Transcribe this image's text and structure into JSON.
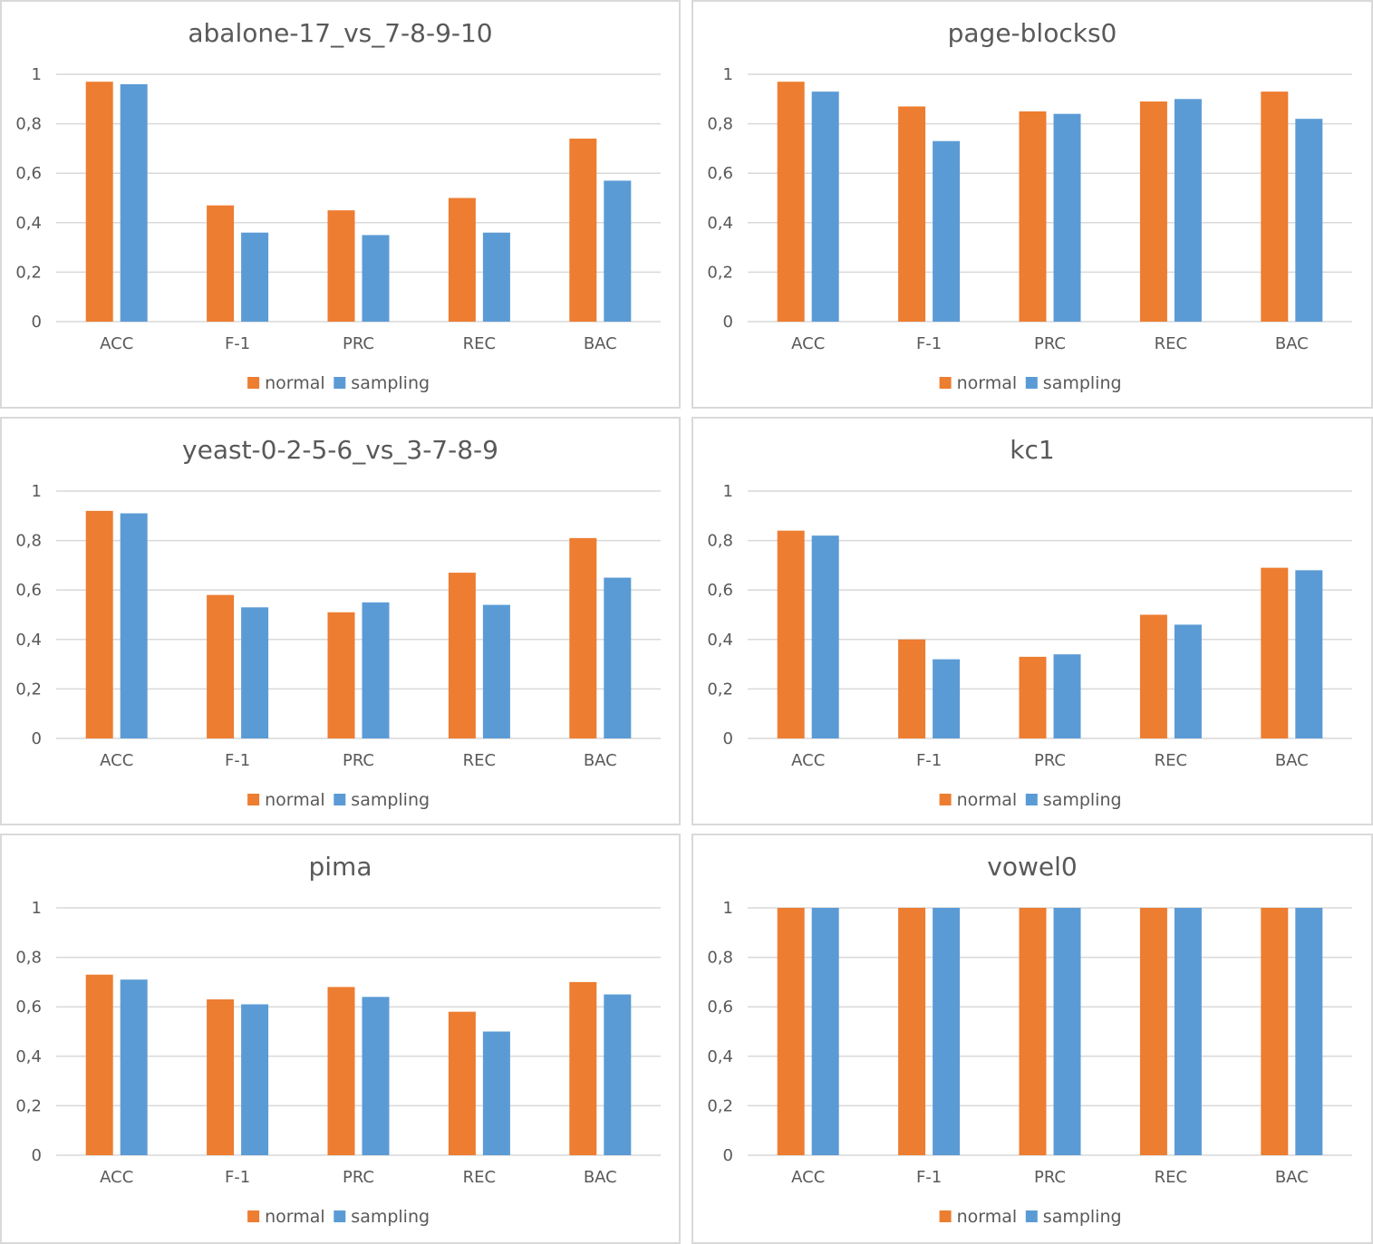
{
  "colors": {
    "normal": "#ed7d31",
    "sampling": "#5b9bd5",
    "grid": "#d9d9d9",
    "text": "#595959"
  },
  "chart_data": [
    {
      "type": "bar",
      "title": "abalone-17_vs_7-8-9-10",
      "categories": [
        "ACC",
        "F-1",
        "PRC",
        "REC",
        "BAC"
      ],
      "series": [
        {
          "name": "normal",
          "values": [
            0.97,
            0.47,
            0.45,
            0.5,
            0.74
          ]
        },
        {
          "name": "sampling",
          "values": [
            0.96,
            0.36,
            0.35,
            0.36,
            0.57
          ]
        }
      ],
      "ylim": [
        0,
        1
      ],
      "yticks": [
        "0",
        "0,2",
        "0,4",
        "0,6",
        "0,8",
        "1"
      ],
      "legend": "bottom"
    },
    {
      "type": "bar",
      "title": "page-blocks0",
      "categories": [
        "ACC",
        "F-1",
        "PRC",
        "REC",
        "BAC"
      ],
      "series": [
        {
          "name": "normal",
          "values": [
            0.97,
            0.87,
            0.85,
            0.89,
            0.93
          ]
        },
        {
          "name": "sampling",
          "values": [
            0.93,
            0.73,
            0.84,
            0.9,
            0.82
          ]
        }
      ],
      "ylim": [
        0,
        1
      ],
      "yticks": [
        "0",
        "0,2",
        "0,4",
        "0,6",
        "0,8",
        "1"
      ],
      "legend": "bottom"
    },
    {
      "type": "bar",
      "title": "yeast-0-2-5-6_vs_3-7-8-9",
      "categories": [
        "ACC",
        "F-1",
        "PRC",
        "REC",
        "BAC"
      ],
      "series": [
        {
          "name": "normal",
          "values": [
            0.92,
            0.58,
            0.51,
            0.67,
            0.81
          ]
        },
        {
          "name": "sampling",
          "values": [
            0.91,
            0.53,
            0.55,
            0.54,
            0.65
          ]
        }
      ],
      "ylim": [
        0,
        1
      ],
      "yticks": [
        "0",
        "0,2",
        "0,4",
        "0,6",
        "0,8",
        "1"
      ],
      "legend": "bottom"
    },
    {
      "type": "bar",
      "title": "kc1",
      "categories": [
        "ACC",
        "F-1",
        "PRC",
        "REC",
        "BAC"
      ],
      "series": [
        {
          "name": "normal",
          "values": [
            0.84,
            0.4,
            0.33,
            0.5,
            0.69
          ]
        },
        {
          "name": "sampling",
          "values": [
            0.82,
            0.32,
            0.34,
            0.46,
            0.68
          ]
        }
      ],
      "ylim": [
        0,
        1
      ],
      "yticks": [
        "0",
        "0,2",
        "0,4",
        "0,6",
        "0,8",
        "1"
      ],
      "legend": "bottom"
    },
    {
      "type": "bar",
      "title": "pima",
      "categories": [
        "ACC",
        "F-1",
        "PRC",
        "REC",
        "BAC"
      ],
      "series": [
        {
          "name": "normal",
          "values": [
            0.73,
            0.63,
            0.68,
            0.58,
            0.7
          ]
        },
        {
          "name": "sampling",
          "values": [
            0.71,
            0.61,
            0.64,
            0.5,
            0.65
          ]
        }
      ],
      "ylim": [
        0,
        1
      ],
      "yticks": [
        "0",
        "0,2",
        "0,4",
        "0,6",
        "0,8",
        "1"
      ],
      "legend": "bottom"
    },
    {
      "type": "bar",
      "title": "vowel0",
      "categories": [
        "ACC",
        "F-1",
        "PRC",
        "REC",
        "BAC"
      ],
      "series": [
        {
          "name": "normal",
          "values": [
            1.0,
            1.0,
            1.0,
            1.0,
            1.0
          ]
        },
        {
          "name": "sampling",
          "values": [
            1.0,
            1.0,
            1.0,
            1.0,
            1.0
          ]
        }
      ],
      "ylim": [
        0,
        1
      ],
      "yticks": [
        "0",
        "0,2",
        "0,4",
        "0,6",
        "0,8",
        "1"
      ],
      "legend": "bottom"
    }
  ]
}
